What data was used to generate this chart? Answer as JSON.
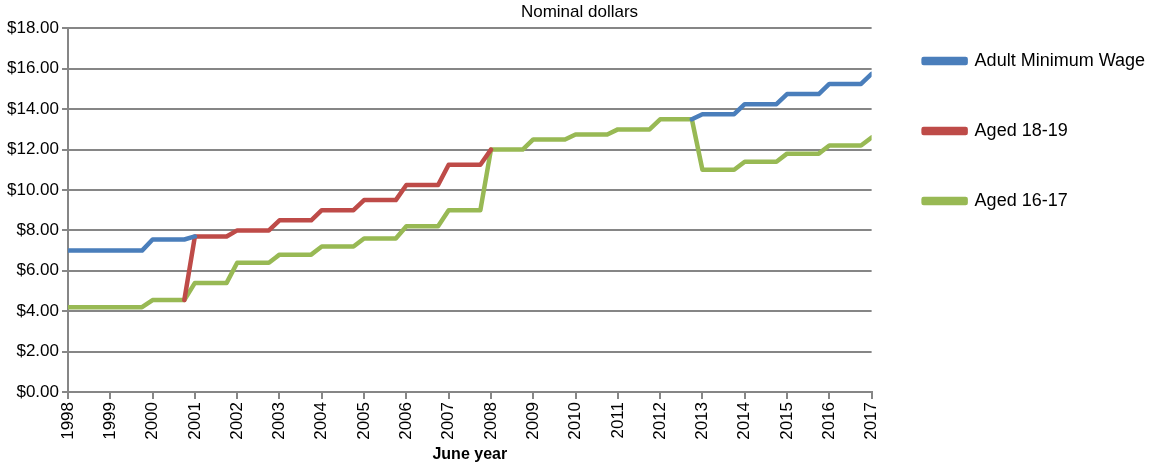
{
  "chart_data": {
    "type": "line",
    "title": "Nominal dollars",
    "xlabel": "June year",
    "x": [
      1998,
      1998.25,
      1998.5,
      1998.75,
      1999,
      1999.25,
      1999.5,
      1999.75,
      2000,
      2000.25,
      2000.5,
      2000.75,
      2001,
      2001.25,
      2001.5,
      2001.75,
      2002,
      2002.25,
      2002.5,
      2002.75,
      2003,
      2003.25,
      2003.5,
      2003.75,
      2004,
      2004.25,
      2004.5,
      2004.75,
      2005,
      2005.25,
      2005.5,
      2005.75,
      2006,
      2006.25,
      2006.5,
      2006.75,
      2007,
      2007.25,
      2007.5,
      2007.75,
      2008,
      2008.25,
      2008.5,
      2008.75,
      2009,
      2009.25,
      2009.5,
      2009.75,
      2010,
      2010.25,
      2010.5,
      2010.75,
      2011,
      2011.25,
      2011.5,
      2011.75,
      2012,
      2012.25,
      2012.5,
      2012.75,
      2013,
      2013.25,
      2013.5,
      2013.75,
      2014,
      2014.25,
      2014.5,
      2014.75,
      2015,
      2015.25,
      2015.5,
      2015.75,
      2016,
      2016.25,
      2016.5,
      2016.75,
      2017
    ],
    "series": [
      {
        "name": "Adult Minimum Wage",
        "color": "#4a7ebb",
        "values": [
          7,
          7,
          7,
          7,
          7,
          7,
          7,
          7,
          7.55,
          7.55,
          7.55,
          7.55,
          7.7,
          null,
          null,
          null,
          null,
          null,
          null,
          null,
          null,
          null,
          null,
          null,
          null,
          null,
          null,
          null,
          null,
          null,
          null,
          null,
          null,
          null,
          null,
          null,
          null,
          null,
          null,
          null,
          null,
          null,
          null,
          null,
          null,
          null,
          null,
          null,
          null,
          null,
          null,
          null,
          null,
          null,
          null,
          null,
          null,
          null,
          null,
          13.5,
          13.75,
          13.75,
          13.75,
          13.75,
          14.25,
          14.25,
          14.25,
          14.25,
          14.75,
          14.75,
          14.75,
          14.75,
          15.25,
          15.25,
          15.25,
          15.25,
          15.75
        ]
      },
      {
        "name": "Aged 18-19",
        "color": "#be4b48",
        "values": [
          null,
          null,
          null,
          null,
          null,
          null,
          null,
          null,
          null,
          null,
          null,
          4.55,
          7.7,
          7.7,
          7.7,
          7.7,
          8,
          8,
          8,
          8,
          8.5,
          8.5,
          8.5,
          8.5,
          9,
          9,
          9,
          9,
          9.5,
          9.5,
          9.5,
          9.5,
          10.25,
          10.25,
          10.25,
          10.25,
          11.25,
          11.25,
          11.25,
          11.25,
          12,
          null,
          null,
          null,
          null,
          null,
          null,
          null,
          null,
          null,
          null,
          null,
          null,
          null,
          null,
          null,
          null,
          null,
          null,
          null,
          null,
          null,
          null,
          null,
          null,
          null,
          null,
          null,
          null,
          null,
          null,
          null,
          null,
          null,
          null,
          null,
          null
        ]
      },
      {
        "name": "Aged 16-17",
        "color": "#98b954",
        "values": [
          4.2,
          4.2,
          4.2,
          4.2,
          4.2,
          4.2,
          4.2,
          4.2,
          4.55,
          4.55,
          4.55,
          4.55,
          5.4,
          5.4,
          5.4,
          5.4,
          6.4,
          6.4,
          6.4,
          6.4,
          6.8,
          6.8,
          6.8,
          6.8,
          7.2,
          7.2,
          7.2,
          7.2,
          7.6,
          7.6,
          7.6,
          7.6,
          8.2,
          8.2,
          8.2,
          8.2,
          9,
          9,
          9,
          9,
          12,
          12,
          12,
          12,
          12.5,
          12.5,
          12.5,
          12.5,
          12.75,
          12.75,
          12.75,
          12.75,
          13,
          13,
          13,
          13,
          13.5,
          13.5,
          13.5,
          13.5,
          11,
          11,
          11,
          11,
          11.4,
          11.4,
          11.4,
          11.4,
          11.8,
          11.8,
          11.8,
          11.8,
          12.2,
          12.2,
          12.2,
          12.2,
          12.6
        ]
      }
    ],
    "xlim": [
      1998,
      2017
    ],
    "xticks": [
      1998,
      1999,
      2000,
      2001,
      2002,
      2003,
      2004,
      2005,
      2006,
      2007,
      2008,
      2009,
      2010,
      2011,
      2012,
      2013,
      2014,
      2015,
      2016,
      2017
    ],
    "ylim": [
      0,
      18
    ],
    "yticks": [
      {
        "value": 0,
        "label": "$0.00"
      },
      {
        "value": 2,
        "label": "$2.00"
      },
      {
        "value": 4,
        "label": "$4.00"
      },
      {
        "value": 6,
        "label": "$6.00"
      },
      {
        "value": 8,
        "label": "$8.00"
      },
      {
        "value": 10,
        "label": "$10.00"
      },
      {
        "value": 12,
        "label": "$12.00"
      },
      {
        "value": 14,
        "label": "$14.00"
      },
      {
        "value": 16,
        "label": "$16.00"
      },
      {
        "value": 18,
        "label": "$18.00"
      }
    ],
    "grid": "y",
    "legend": "right",
    "marker": "none",
    "line_style": "solid"
  }
}
